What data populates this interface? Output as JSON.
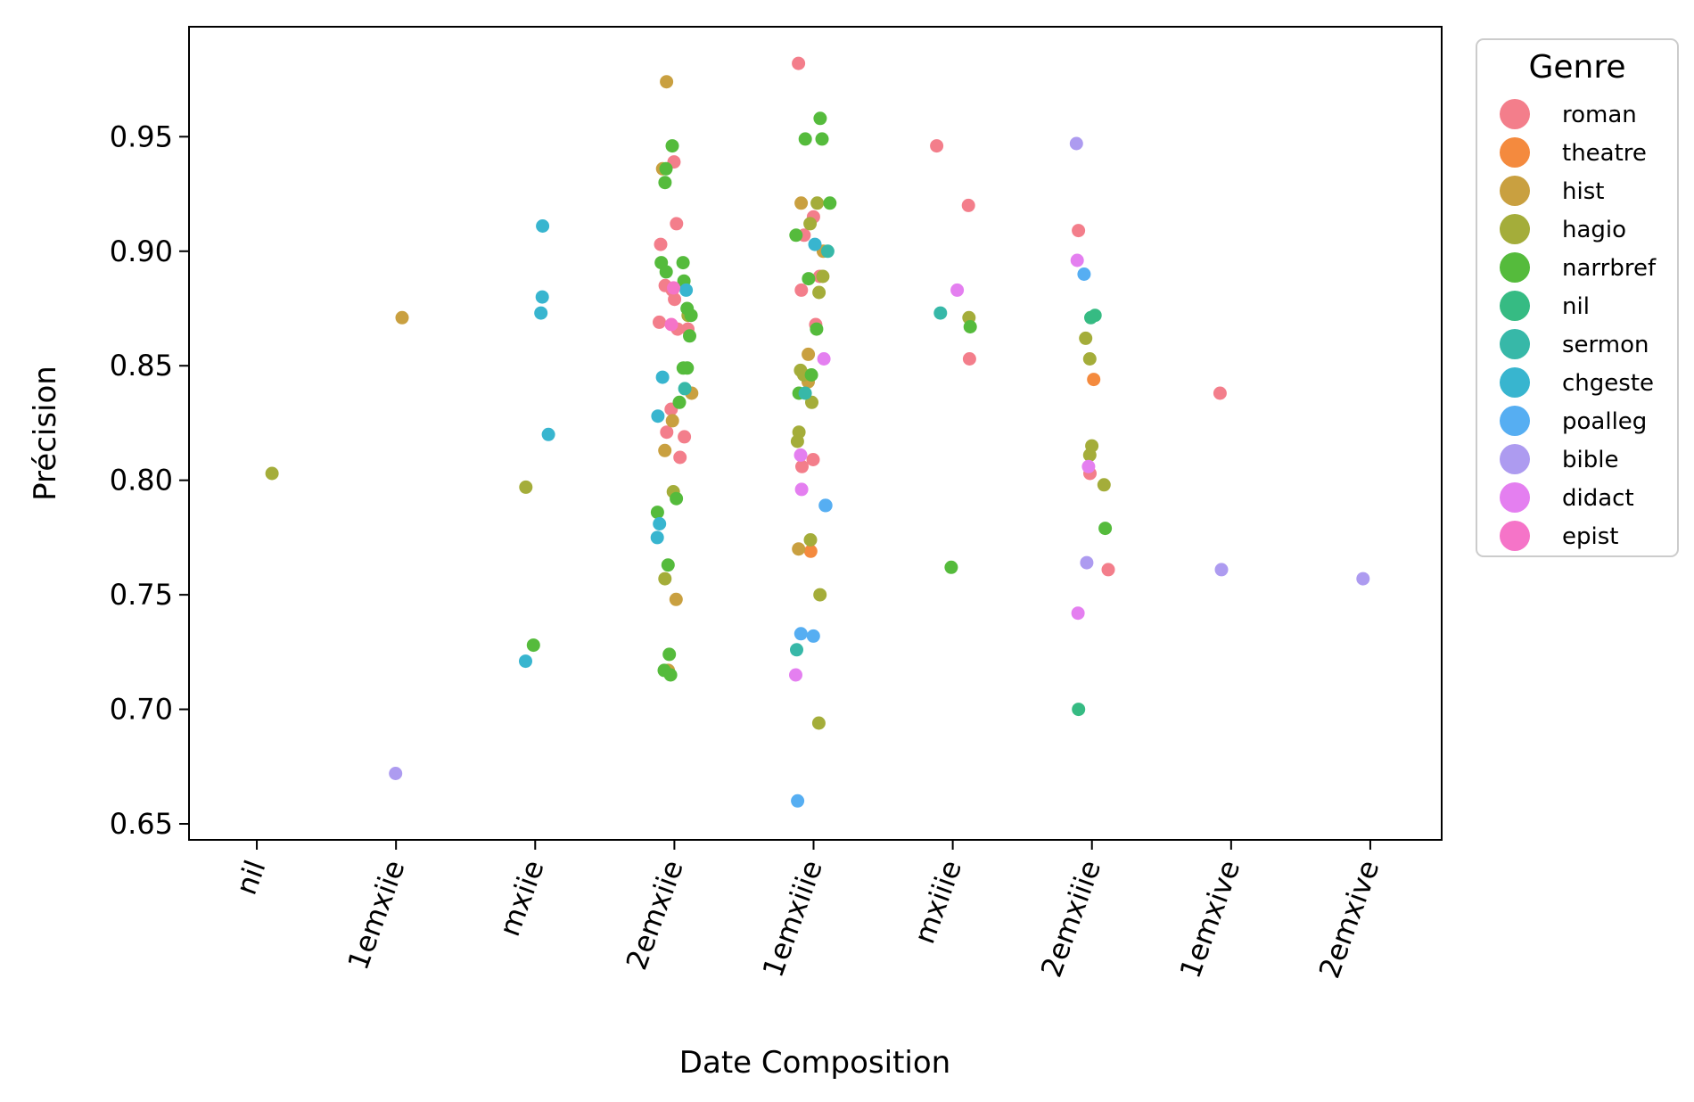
{
  "chart_data": {
    "type": "scatter",
    "xlabel": "Date Composition",
    "ylabel": "Précision",
    "categories": [
      "nil",
      "1emxiie",
      "mxiie",
      "2emxiie",
      "1emxiiie",
      "mxiiie",
      "2emxiiie",
      "1emxive",
      "2emxive"
    ],
    "yticks": [
      "0.65",
      "0.70",
      "0.75",
      "0.80",
      "0.85",
      "0.90",
      "0.95"
    ],
    "ylim": [
      0.643,
      0.998
    ],
    "grid": false,
    "legend": {
      "title": "Genre",
      "placement": "outside-right",
      "entries": [
        "roman",
        "theatre",
        "hist",
        "hagio",
        "narrbref",
        "nil",
        "sermon",
        "chgeste",
        "poalleg",
        "bible",
        "didact",
        "epist"
      ]
    },
    "colors": {
      "roman": "#f37e8b",
      "theatre": "#f48a3e",
      "hist": "#c9a040",
      "hagio": "#a4ad3a",
      "narrbref": "#55bb3c",
      "nil": "#36bb83",
      "sermon": "#37b8a8",
      "chgeste": "#38b5cf",
      "poalleg": "#56aef2",
      "bible": "#ad9bf0",
      "didact": "#e47ff0",
      "epist": "#f574c8"
    },
    "series": [
      {
        "name": "roman",
        "points": [
          [
            "2emxiie",
            0.939
          ],
          [
            "2emxiie",
            0.912
          ],
          [
            "2emxiie",
            0.903
          ],
          [
            "2emxiie",
            0.885
          ],
          [
            "2emxiie",
            0.883
          ],
          [
            "2emxiie",
            0.879
          ],
          [
            "2emxiie",
            0.869
          ],
          [
            "2emxiie",
            0.866
          ],
          [
            "2emxiie",
            0.866
          ],
          [
            "2emxiie",
            0.831
          ],
          [
            "2emxiie",
            0.821
          ],
          [
            "2emxiie",
            0.819
          ],
          [
            "2emxiie",
            0.81
          ],
          [
            "1emxiiie",
            0.982
          ],
          [
            "1emxiiie",
            0.915
          ],
          [
            "1emxiiie",
            0.907
          ],
          [
            "1emxiiie",
            0.889
          ],
          [
            "1emxiiie",
            0.883
          ],
          [
            "1emxiiie",
            0.868
          ],
          [
            "1emxiiie",
            0.809
          ],
          [
            "1emxiiie",
            0.806
          ],
          [
            "mxiiie",
            0.946
          ],
          [
            "mxiiie",
            0.92
          ],
          [
            "mxiiie",
            0.853
          ],
          [
            "2emxiiie",
            0.909
          ],
          [
            "2emxiiie",
            0.803
          ],
          [
            "2emxiiie",
            0.761
          ],
          [
            "1emxive",
            0.838
          ]
        ]
      },
      {
        "name": "theatre",
        "points": [
          [
            "1emxiiie",
            0.769
          ],
          [
            "2emxiiie",
            0.844
          ]
        ]
      },
      {
        "name": "hist",
        "points": [
          [
            "1emxiie",
            0.871
          ],
          [
            "2emxiie",
            0.974
          ],
          [
            "2emxiie",
            0.936
          ],
          [
            "2emxiie",
            0.838
          ],
          [
            "2emxiie",
            0.826
          ],
          [
            "2emxiie",
            0.813
          ],
          [
            "2emxiie",
            0.748
          ],
          [
            "2emxiie",
            0.717
          ],
          [
            "1emxiiie",
            0.921
          ],
          [
            "1emxiiie",
            0.9
          ],
          [
            "1emxiiie",
            0.855
          ],
          [
            "1emxiiie",
            0.843
          ],
          [
            "1emxiiie",
            0.77
          ]
        ]
      },
      {
        "name": "hagio",
        "points": [
          [
            "nil",
            0.803
          ],
          [
            "mxiie",
            0.797
          ],
          [
            "2emxiie",
            0.872
          ],
          [
            "2emxiie",
            0.795
          ],
          [
            "2emxiie",
            0.757
          ],
          [
            "1emxiiie",
            0.921
          ],
          [
            "1emxiiie",
            0.912
          ],
          [
            "1emxiiie",
            0.889
          ],
          [
            "1emxiiie",
            0.882
          ],
          [
            "1emxiiie",
            0.848
          ],
          [
            "1emxiiie",
            0.846
          ],
          [
            "1emxiiie",
            0.834
          ],
          [
            "1emxiiie",
            0.821
          ],
          [
            "1emxiiie",
            0.817
          ],
          [
            "1emxiiie",
            0.774
          ],
          [
            "1emxiiie",
            0.75
          ],
          [
            "1emxiiie",
            0.694
          ],
          [
            "mxiiie",
            0.871
          ],
          [
            "2emxiiie",
            0.862
          ],
          [
            "2emxiiie",
            0.853
          ],
          [
            "2emxiiie",
            0.815
          ],
          [
            "2emxiiie",
            0.811
          ],
          [
            "2emxiiie",
            0.798
          ]
        ]
      },
      {
        "name": "narrbref",
        "points": [
          [
            "mxiie",
            0.728
          ],
          [
            "2emxiie",
            0.946
          ],
          [
            "2emxiie",
            0.936
          ],
          [
            "2emxiie",
            0.93
          ],
          [
            "2emxiie",
            0.895
          ],
          [
            "2emxiie",
            0.895
          ],
          [
            "2emxiie",
            0.891
          ],
          [
            "2emxiie",
            0.887
          ],
          [
            "2emxiie",
            0.875
          ],
          [
            "2emxiie",
            0.872
          ],
          [
            "2emxiie",
            0.863
          ],
          [
            "2emxiie",
            0.849
          ],
          [
            "2emxiie",
            0.849
          ],
          [
            "2emxiie",
            0.834
          ],
          [
            "2emxiie",
            0.792
          ],
          [
            "2emxiie",
            0.786
          ],
          [
            "2emxiie",
            0.763
          ],
          [
            "2emxiie",
            0.724
          ],
          [
            "2emxiie",
            0.717
          ],
          [
            "2emxiie",
            0.715
          ],
          [
            "1emxiiie",
            0.958
          ],
          [
            "1emxiiie",
            0.949
          ],
          [
            "1emxiiie",
            0.949
          ],
          [
            "1emxiiie",
            0.921
          ],
          [
            "1emxiiie",
            0.907
          ],
          [
            "1emxiiie",
            0.888
          ],
          [
            "1emxiiie",
            0.866
          ],
          [
            "1emxiiie",
            0.846
          ],
          [
            "1emxiiie",
            0.838
          ],
          [
            "mxiiie",
            0.867
          ],
          [
            "mxiiie",
            0.762
          ],
          [
            "2emxiiie",
            0.779
          ]
        ]
      },
      {
        "name": "nil",
        "points": [
          [
            "2emxiiie",
            0.872
          ],
          [
            "2emxiiie",
            0.871
          ],
          [
            "2emxiiie",
            0.7
          ]
        ]
      },
      {
        "name": "sermon",
        "points": [
          [
            "2emxiie",
            0.84
          ],
          [
            "1emxiiie",
            0.9
          ],
          [
            "1emxiiie",
            0.838
          ],
          [
            "1emxiiie",
            0.726
          ],
          [
            "mxiiie",
            0.873
          ]
        ]
      },
      {
        "name": "chgeste",
        "points": [
          [
            "mxiie",
            0.911
          ],
          [
            "mxiie",
            0.88
          ],
          [
            "mxiie",
            0.873
          ],
          [
            "mxiie",
            0.82
          ],
          [
            "mxiie",
            0.721
          ],
          [
            "2emxiie",
            0.883
          ],
          [
            "2emxiie",
            0.845
          ],
          [
            "2emxiie",
            0.828
          ],
          [
            "2emxiie",
            0.781
          ],
          [
            "2emxiie",
            0.775
          ],
          [
            "1emxiiie",
            0.903
          ]
        ]
      },
      {
        "name": "poalleg",
        "points": [
          [
            "1emxiiie",
            0.789
          ],
          [
            "1emxiiie",
            0.789
          ],
          [
            "1emxiiie",
            0.733
          ],
          [
            "1emxiiie",
            0.732
          ],
          [
            "1emxiiie",
            0.66
          ],
          [
            "2emxiiie",
            0.89
          ]
        ]
      },
      {
        "name": "bible",
        "points": [
          [
            "1emxiie",
            0.672
          ],
          [
            "2emxiiie",
            0.947
          ],
          [
            "2emxiiie",
            0.764
          ],
          [
            "1emxive",
            0.761
          ],
          [
            "2emxive",
            0.757
          ]
        ]
      },
      {
        "name": "didact",
        "points": [
          [
            "1emxiiie",
            0.853
          ],
          [
            "1emxiiie",
            0.811
          ],
          [
            "1emxiiie",
            0.796
          ],
          [
            "1emxiiie",
            0.715
          ],
          [
            "mxiiie",
            0.883
          ],
          [
            "2emxiiie",
            0.896
          ],
          [
            "2emxiiie",
            0.806
          ],
          [
            "2emxiiie",
            0.742
          ]
        ]
      },
      {
        "name": "epist",
        "points": [
          [
            "2emxiie",
            0.884
          ],
          [
            "2emxiie",
            0.868
          ]
        ]
      }
    ]
  }
}
